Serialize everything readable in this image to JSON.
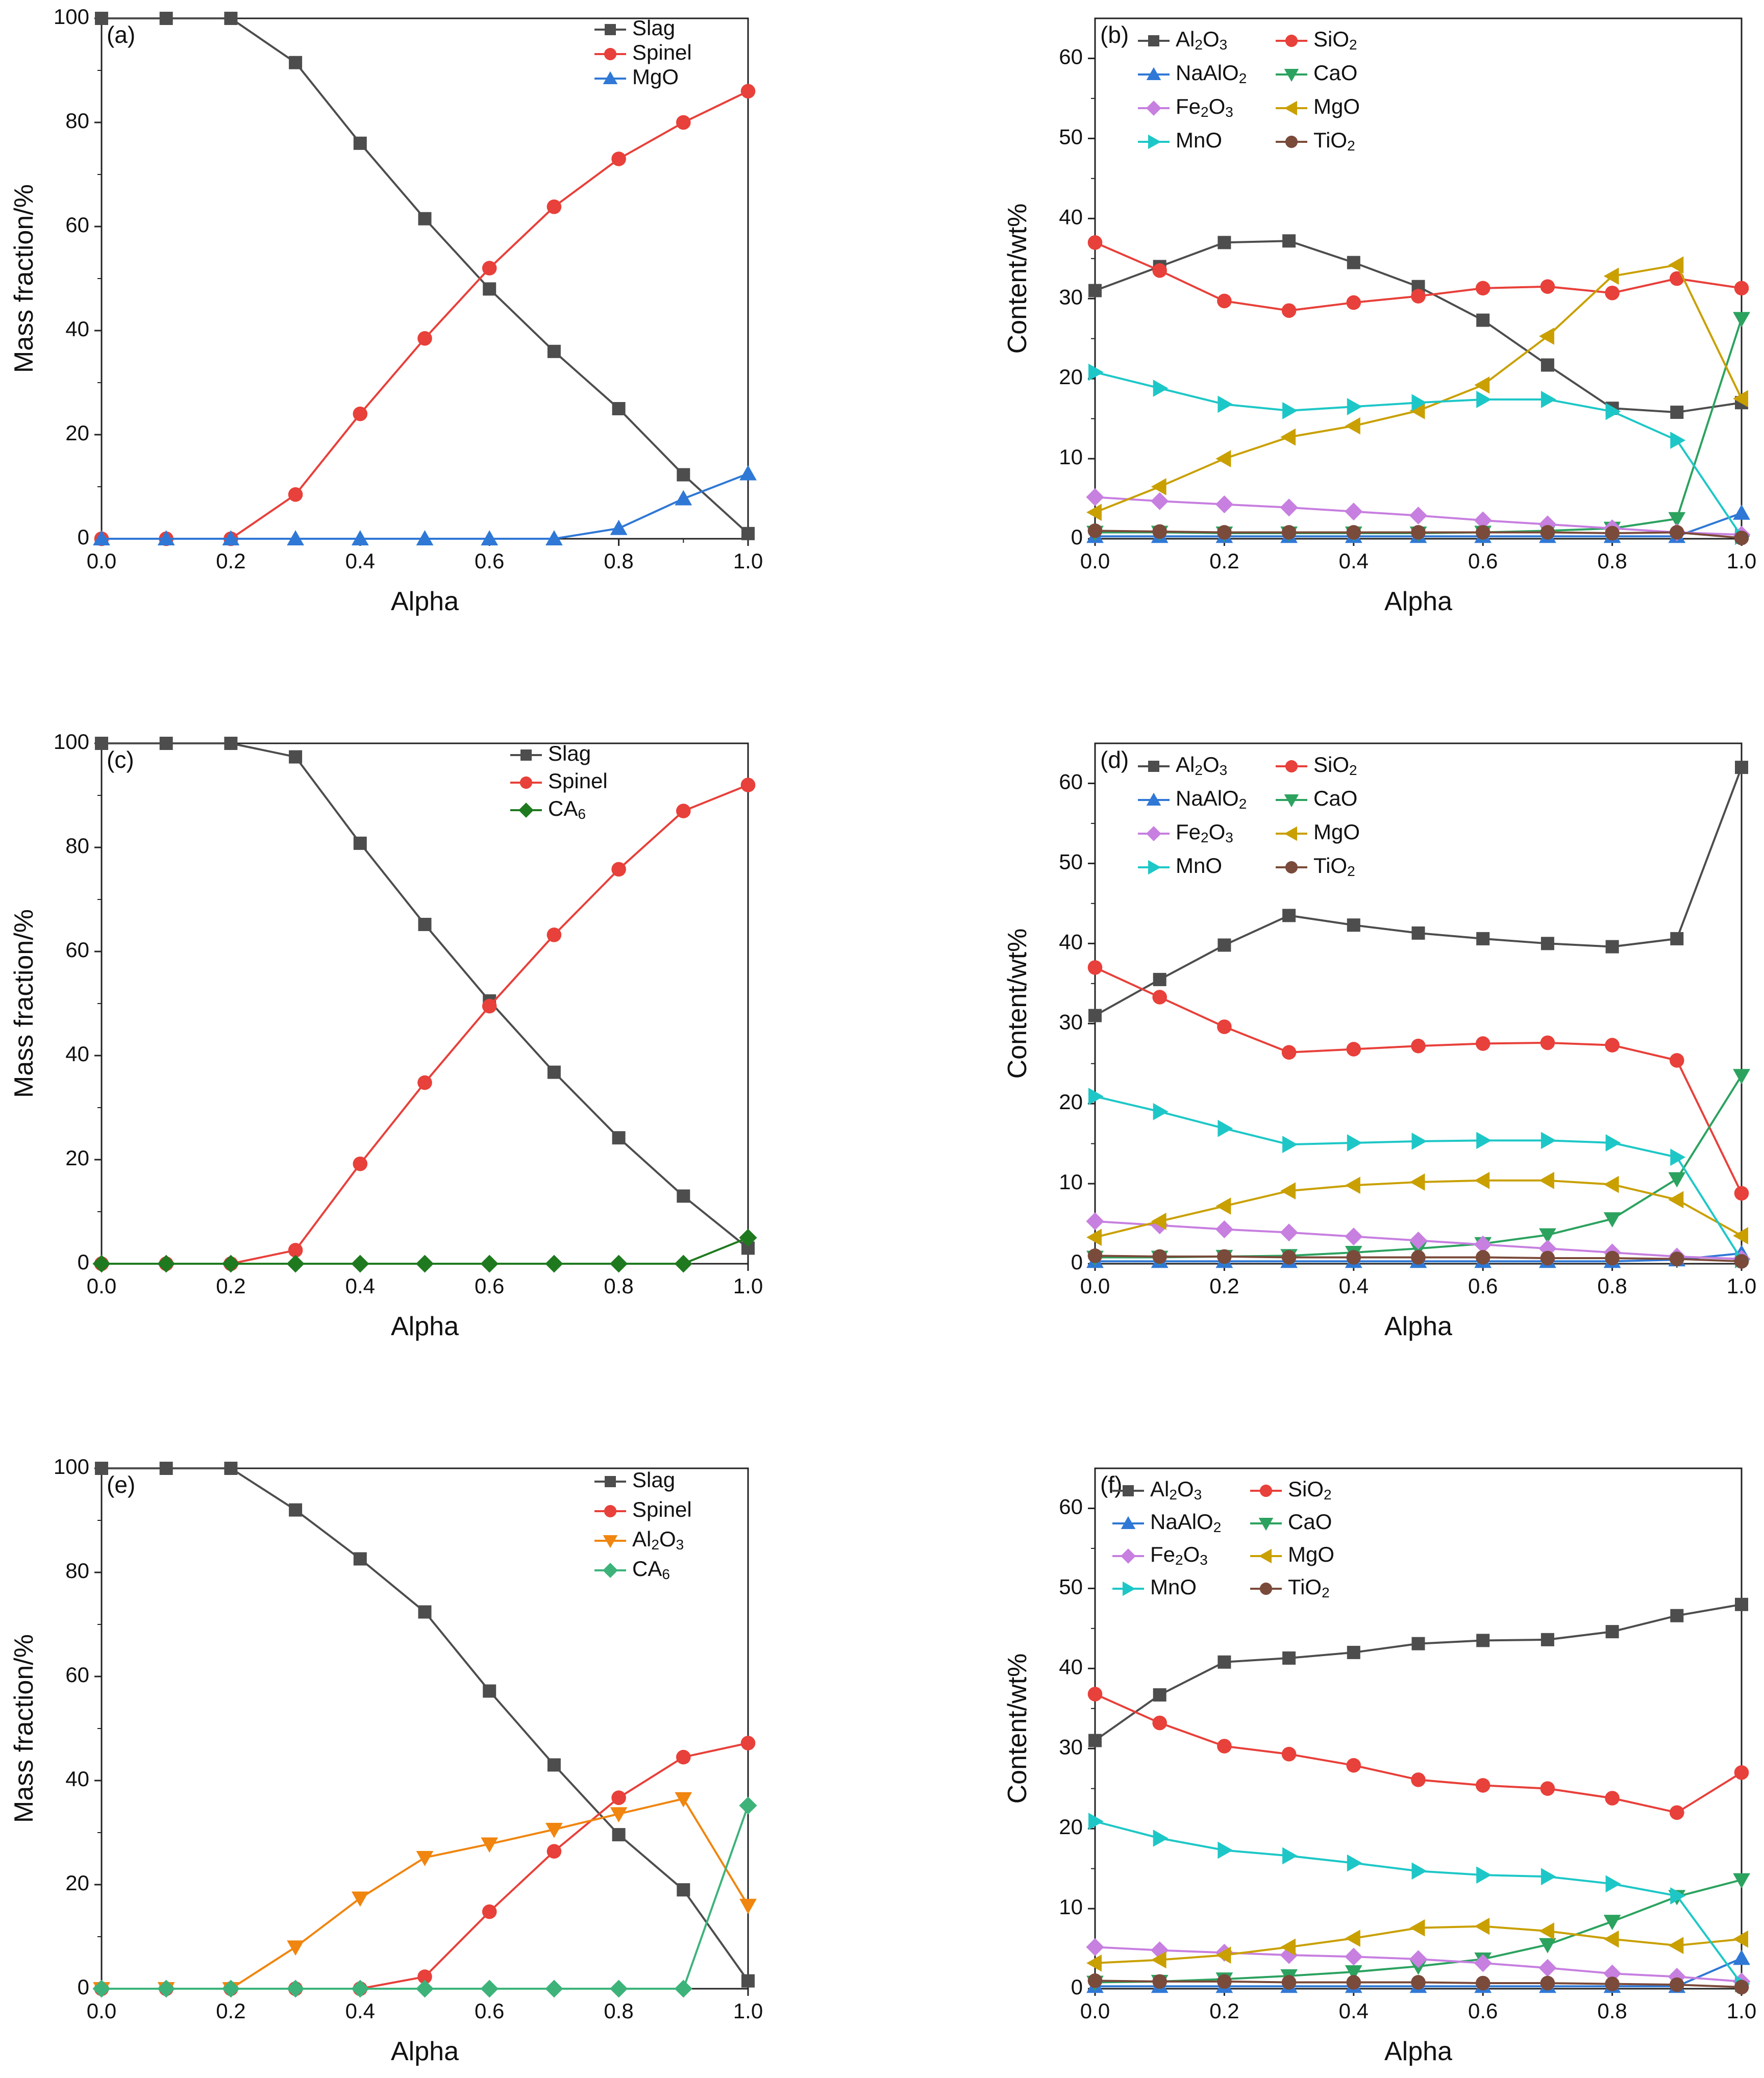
{
  "chart_data": [
    {
      "id": "a",
      "type": "line",
      "panel_label": "(a)",
      "xlabel": "Alpha",
      "ylabel": "Mass fraction/%",
      "xlim": [
        0,
        1
      ],
      "ylim": [
        0,
        100
      ],
      "xticks": [
        "0.0",
        "0.2",
        "0.4",
        "0.6",
        "0.8",
        "1.0"
      ],
      "yticks": [
        "0",
        "20",
        "40",
        "60",
        "80",
        "100"
      ],
      "x": [
        0,
        0.1,
        0.2,
        0.3,
        0.4,
        0.5,
        0.6,
        0.7,
        0.8,
        0.9,
        1.0
      ],
      "legend_position": "top-right",
      "series": [
        {
          "name": "Slag",
          "name_sub": "",
          "name_post": "",
          "color": "#4d4d4d",
          "marker": "square",
          "values": [
            100,
            100,
            100,
            91.5,
            76,
            61.5,
            48,
            36,
            25,
            12.3,
            1
          ]
        },
        {
          "name": "Spinel",
          "name_sub": "",
          "name_post": "",
          "color": "#e8403a",
          "marker": "circle",
          "values": [
            0,
            0,
            0,
            8.5,
            24,
            38.5,
            52,
            63.8,
            73,
            80,
            86
          ]
        },
        {
          "name": "MgO",
          "name_sub": "",
          "name_post": "",
          "color": "#2f78d6",
          "marker": "triangle-up",
          "values": [
            0,
            0,
            0,
            0,
            0,
            0,
            0,
            0,
            2,
            7.7,
            12.5
          ]
        }
      ]
    },
    {
      "id": "b",
      "type": "line",
      "panel_label": "(b)",
      "xlabel": "Alpha",
      "ylabel": "Content/wt%",
      "xlim": [
        0,
        1
      ],
      "ylim": [
        0,
        65
      ],
      "xticks": [
        "0.0",
        "0.2",
        "0.4",
        "0.6",
        "0.8",
        "1.0"
      ],
      "yticks": [
        "0",
        "10",
        "20",
        "30",
        "40",
        "50",
        "60"
      ],
      "x": [
        0,
        0.1,
        0.2,
        0.3,
        0.4,
        0.5,
        0.6,
        0.7,
        0.8,
        0.9,
        1.0
      ],
      "legend_position": "top-left",
      "series": [
        {
          "name": "Al",
          "name_sub": "2",
          "name_post": "O3",
          "color": "#4d4d4d",
          "marker": "square",
          "values": [
            31,
            34,
            37,
            37.2,
            34.5,
            31.5,
            27.3,
            21.7,
            16.3,
            15.8,
            17
          ]
        },
        {
          "name": "SiO",
          "name_sub": "2",
          "name_post": "",
          "color": "#e8403a",
          "marker": "circle",
          "values": [
            37,
            33.5,
            29.7,
            28.5,
            29.5,
            30.3,
            31.3,
            31.5,
            30.7,
            32.5,
            31.3
          ]
        },
        {
          "name": "NaAlO",
          "name_sub": "2",
          "name_post": "",
          "color": "#2f78d6",
          "marker": "triangle-up",
          "values": [
            0.3,
            0.3,
            0.3,
            0.3,
            0.3,
            0.3,
            0.3,
            0.3,
            0.3,
            0.3,
            3.2
          ]
        },
        {
          "name": "CaO",
          "name_sub": "",
          "name_post": "",
          "color": "#2ca25f",
          "marker": "triangle-down",
          "values": [
            0.8,
            0.8,
            0.7,
            0.7,
            0.7,
            0.7,
            0.8,
            1.0,
            1.3,
            2.5,
            27.5
          ]
        },
        {
          "name": "Fe",
          "name_sub": "2",
          "name_post": "O3",
          "color": "#c77fe0",
          "marker": "diamond",
          "values": [
            5.2,
            4.7,
            4.3,
            3.9,
            3.4,
            2.9,
            2.3,
            1.8,
            1.3,
            0.8,
            0.5
          ]
        },
        {
          "name": "MgO",
          "name_sub": "",
          "name_post": "",
          "color": "#c9a000",
          "marker": "triangle-left",
          "values": [
            3.3,
            6.5,
            10,
            12.7,
            14.1,
            16,
            19.2,
            25.3,
            32.8,
            34.2,
            17.5
          ]
        },
        {
          "name": "MnO",
          "name_sub": "",
          "name_post": "",
          "color": "#1ec7c7",
          "marker": "triangle-right",
          "values": [
            20.8,
            18.8,
            16.8,
            16,
            16.5,
            17,
            17.4,
            17.4,
            15.9,
            12.3,
            0.3
          ]
        },
        {
          "name": "TiO",
          "name_sub": "2",
          "name_post": "",
          "color": "#7a4a3a",
          "marker": "circle",
          "values": [
            1.0,
            0.9,
            0.8,
            0.8,
            0.8,
            0.8,
            0.8,
            0.8,
            0.7,
            0.8,
            0.1
          ]
        }
      ]
    },
    {
      "id": "c",
      "type": "line",
      "panel_label": "(c)",
      "xlabel": "Alpha",
      "ylabel": "Mass fraction/%",
      "xlim": [
        0,
        1
      ],
      "ylim": [
        0,
        100
      ],
      "xticks": [
        "0.0",
        "0.2",
        "0.4",
        "0.6",
        "0.8",
        "1.0"
      ],
      "yticks": [
        "0",
        "20",
        "40",
        "60",
        "80",
        "100"
      ],
      "x": [
        0,
        0.1,
        0.2,
        0.3,
        0.4,
        0.5,
        0.6,
        0.7,
        0.8,
        0.9,
        1.0
      ],
      "legend_position": "top-right",
      "series": [
        {
          "name": "Slag",
          "name_sub": "",
          "name_post": "",
          "color": "#4d4d4d",
          "marker": "square",
          "values": [
            100,
            100,
            100,
            97.4,
            80.8,
            65.2,
            50.5,
            36.8,
            24.2,
            13,
            3
          ]
        },
        {
          "name": "Spinel",
          "name_sub": "",
          "name_post": "",
          "color": "#e8403a",
          "marker": "circle",
          "values": [
            0,
            0,
            0,
            2.6,
            19.2,
            34.8,
            49.5,
            63.2,
            75.8,
            87,
            92
          ]
        },
        {
          "name": "CA",
          "name_sub": "6",
          "name_post": "",
          "color": "#1f7a1f",
          "marker": "diamond",
          "values": [
            0,
            0,
            0,
            0,
            0,
            0,
            0,
            0,
            0,
            0,
            5
          ]
        }
      ]
    },
    {
      "id": "d",
      "type": "line",
      "panel_label": "(d)",
      "xlabel": "Alpha",
      "ylabel": "Content/wt%",
      "xlim": [
        0,
        1
      ],
      "ylim": [
        0,
        65
      ],
      "xticks": [
        "0.0",
        "0.2",
        "0.4",
        "0.6",
        "0.8",
        "1.0"
      ],
      "yticks": [
        "0",
        "10",
        "20",
        "30",
        "40",
        "50",
        "60"
      ],
      "x": [
        0,
        0.1,
        0.2,
        0.3,
        0.4,
        0.5,
        0.6,
        0.7,
        0.8,
        0.9,
        1.0
      ],
      "legend_position": "top-left",
      "series": [
        {
          "name": "Al",
          "name_sub": "2",
          "name_post": "O3",
          "color": "#4d4d4d",
          "marker": "square",
          "values": [
            31,
            35.5,
            39.8,
            43.5,
            42.3,
            41.3,
            40.6,
            40,
            39.6,
            40.6,
            62
          ]
        },
        {
          "name": "SiO",
          "name_sub": "2",
          "name_post": "",
          "color": "#e8403a",
          "marker": "circle",
          "values": [
            37,
            33.3,
            29.6,
            26.4,
            26.8,
            27.2,
            27.5,
            27.6,
            27.3,
            25.4,
            8.8
          ]
        },
        {
          "name": "NaAlO",
          "name_sub": "2",
          "name_post": "",
          "color": "#2f78d6",
          "marker": "triangle-up",
          "values": [
            0.3,
            0.3,
            0.3,
            0.3,
            0.3,
            0.3,
            0.3,
            0.3,
            0.3,
            0.5,
            1.3
          ]
        },
        {
          "name": "CaO",
          "name_sub": "",
          "name_post": "",
          "color": "#2ca25f",
          "marker": "triangle-down",
          "values": [
            0.8,
            0.8,
            0.9,
            1.0,
            1.4,
            1.9,
            2.5,
            3.6,
            5.6,
            10.6,
            23.5
          ]
        },
        {
          "name": "Fe",
          "name_sub": "2",
          "name_post": "O3",
          "color": "#c77fe0",
          "marker": "diamond",
          "values": [
            5.3,
            4.8,
            4.3,
            3.9,
            3.4,
            2.9,
            2.4,
            1.9,
            1.4,
            0.9,
            0.6
          ]
        },
        {
          "name": "MgO",
          "name_sub": "",
          "name_post": "",
          "color": "#c9a000",
          "marker": "triangle-left",
          "values": [
            3.3,
            5.3,
            7.2,
            9.1,
            9.8,
            10.2,
            10.4,
            10.4,
            9.9,
            8,
            3.5
          ]
        },
        {
          "name": "MnO",
          "name_sub": "",
          "name_post": "",
          "color": "#1ec7c7",
          "marker": "triangle-right",
          "values": [
            20.9,
            19,
            16.9,
            14.9,
            15.1,
            15.3,
            15.4,
            15.4,
            15.1,
            13.3,
            0.5
          ]
        },
        {
          "name": "TiO",
          "name_sub": "2",
          "name_post": "",
          "color": "#7a4a3a",
          "marker": "circle",
          "values": [
            1.0,
            0.9,
            0.9,
            0.8,
            0.8,
            0.8,
            0.8,
            0.7,
            0.7,
            0.6,
            0.3
          ]
        }
      ]
    },
    {
      "id": "e",
      "type": "line",
      "panel_label": "(e)",
      "xlabel": "Alpha",
      "ylabel": "Mass fraction/%",
      "xlim": [
        0,
        1
      ],
      "ylim": [
        0,
        100
      ],
      "xticks": [
        "0.0",
        "0.2",
        "0.4",
        "0.6",
        "0.8",
        "1.0"
      ],
      "yticks": [
        "0",
        "20",
        "40",
        "60",
        "80",
        "100"
      ],
      "x": [
        0,
        0.1,
        0.2,
        0.3,
        0.4,
        0.5,
        0.6,
        0.7,
        0.8,
        0.9,
        1.0
      ],
      "legend_position": "top-right",
      "series": [
        {
          "name": "Slag",
          "name_sub": "",
          "name_post": "",
          "color": "#4d4d4d",
          "marker": "square",
          "values": [
            100,
            100,
            100,
            92,
            82.6,
            72.4,
            57.2,
            43,
            29.6,
            19,
            1.5
          ]
        },
        {
          "name": "Spinel",
          "name_sub": "",
          "name_post": "",
          "color": "#e8403a",
          "marker": "circle",
          "values": [
            0,
            0,
            0,
            0,
            0,
            2.3,
            14.8,
            26.4,
            36.7,
            44.5,
            47.2
          ]
        },
        {
          "name": "Al",
          "name_sub": "2",
          "name_post": "O3",
          "color": "#f0850f",
          "marker": "triangle-down",
          "values": [
            0,
            0,
            0,
            8,
            17.4,
            25.2,
            27.8,
            30.6,
            33.6,
            36.5,
            16
          ]
        },
        {
          "name": "CA",
          "name_sub": "6",
          "name_post": "",
          "color": "#3db37a",
          "marker": "diamond",
          "values": [
            0,
            0,
            0,
            0,
            0,
            0,
            0,
            0,
            0,
            0,
            35.2
          ]
        }
      ]
    },
    {
      "id": "f",
      "type": "line",
      "panel_label": "(f)",
      "xlabel": "Alpha",
      "ylabel": "Content/wt%",
      "xlim": [
        0,
        1
      ],
      "ylim": [
        0,
        65
      ],
      "xticks": [
        "0.0",
        "0.2",
        "0.4",
        "0.6",
        "0.8",
        "1.0"
      ],
      "yticks": [
        "0",
        "10",
        "20",
        "30",
        "40",
        "50",
        "60"
      ],
      "x": [
        0,
        0.1,
        0.2,
        0.3,
        0.4,
        0.5,
        0.6,
        0.7,
        0.8,
        0.9,
        1.0
      ],
      "legend_position": "top-left",
      "series": [
        {
          "name": "Al",
          "name_sub": "2",
          "name_post": "O3",
          "color": "#4d4d4d",
          "marker": "square",
          "values": [
            31,
            36.7,
            40.8,
            41.3,
            42,
            43.1,
            43.5,
            43.6,
            44.6,
            46.6,
            48
          ]
        },
        {
          "name": "SiO",
          "name_sub": "2",
          "name_post": "",
          "color": "#e8403a",
          "marker": "circle",
          "values": [
            36.8,
            33.2,
            30.3,
            29.3,
            27.9,
            26.1,
            25.4,
            25,
            23.8,
            22,
            27
          ]
        },
        {
          "name": "NaAlO",
          "name_sub": "2",
          "name_post": "",
          "color": "#2f78d6",
          "marker": "triangle-up",
          "values": [
            0.3,
            0.3,
            0.3,
            0.3,
            0.3,
            0.3,
            0.3,
            0.3,
            0.3,
            0.3,
            3.8
          ]
        },
        {
          "name": "CaO",
          "name_sub": "",
          "name_post": "",
          "color": "#2ca25f",
          "marker": "triangle-down",
          "values": [
            0.8,
            0.9,
            1.2,
            1.6,
            2.1,
            2.8,
            3.7,
            5.5,
            8.4,
            11.5,
            13.6
          ]
        },
        {
          "name": "Fe",
          "name_sub": "2",
          "name_post": "O3",
          "color": "#c77fe0",
          "marker": "diamond",
          "values": [
            5.2,
            4.8,
            4.5,
            4.2,
            4.0,
            3.7,
            3.2,
            2.6,
            1.9,
            1.5,
            0.9
          ]
        },
        {
          "name": "MgO",
          "name_sub": "",
          "name_post": "",
          "color": "#c9a000",
          "marker": "triangle-left",
          "values": [
            3.2,
            3.6,
            4.2,
            5.2,
            6.3,
            7.6,
            7.8,
            7.2,
            6.2,
            5.4,
            6.2
          ]
        },
        {
          "name": "MnO",
          "name_sub": "",
          "name_post": "",
          "color": "#1ec7c7",
          "marker": "triangle-right",
          "values": [
            20.9,
            18.8,
            17.3,
            16.6,
            15.7,
            14.7,
            14.2,
            14,
            13.1,
            11.6,
            0.6
          ]
        },
        {
          "name": "TiO",
          "name_sub": "2",
          "name_post": "",
          "color": "#7a4a3a",
          "marker": "circle",
          "values": [
            1.0,
            0.9,
            0.9,
            0.8,
            0.8,
            0.8,
            0.7,
            0.7,
            0.6,
            0.5,
            0.2
          ]
        }
      ]
    }
  ]
}
